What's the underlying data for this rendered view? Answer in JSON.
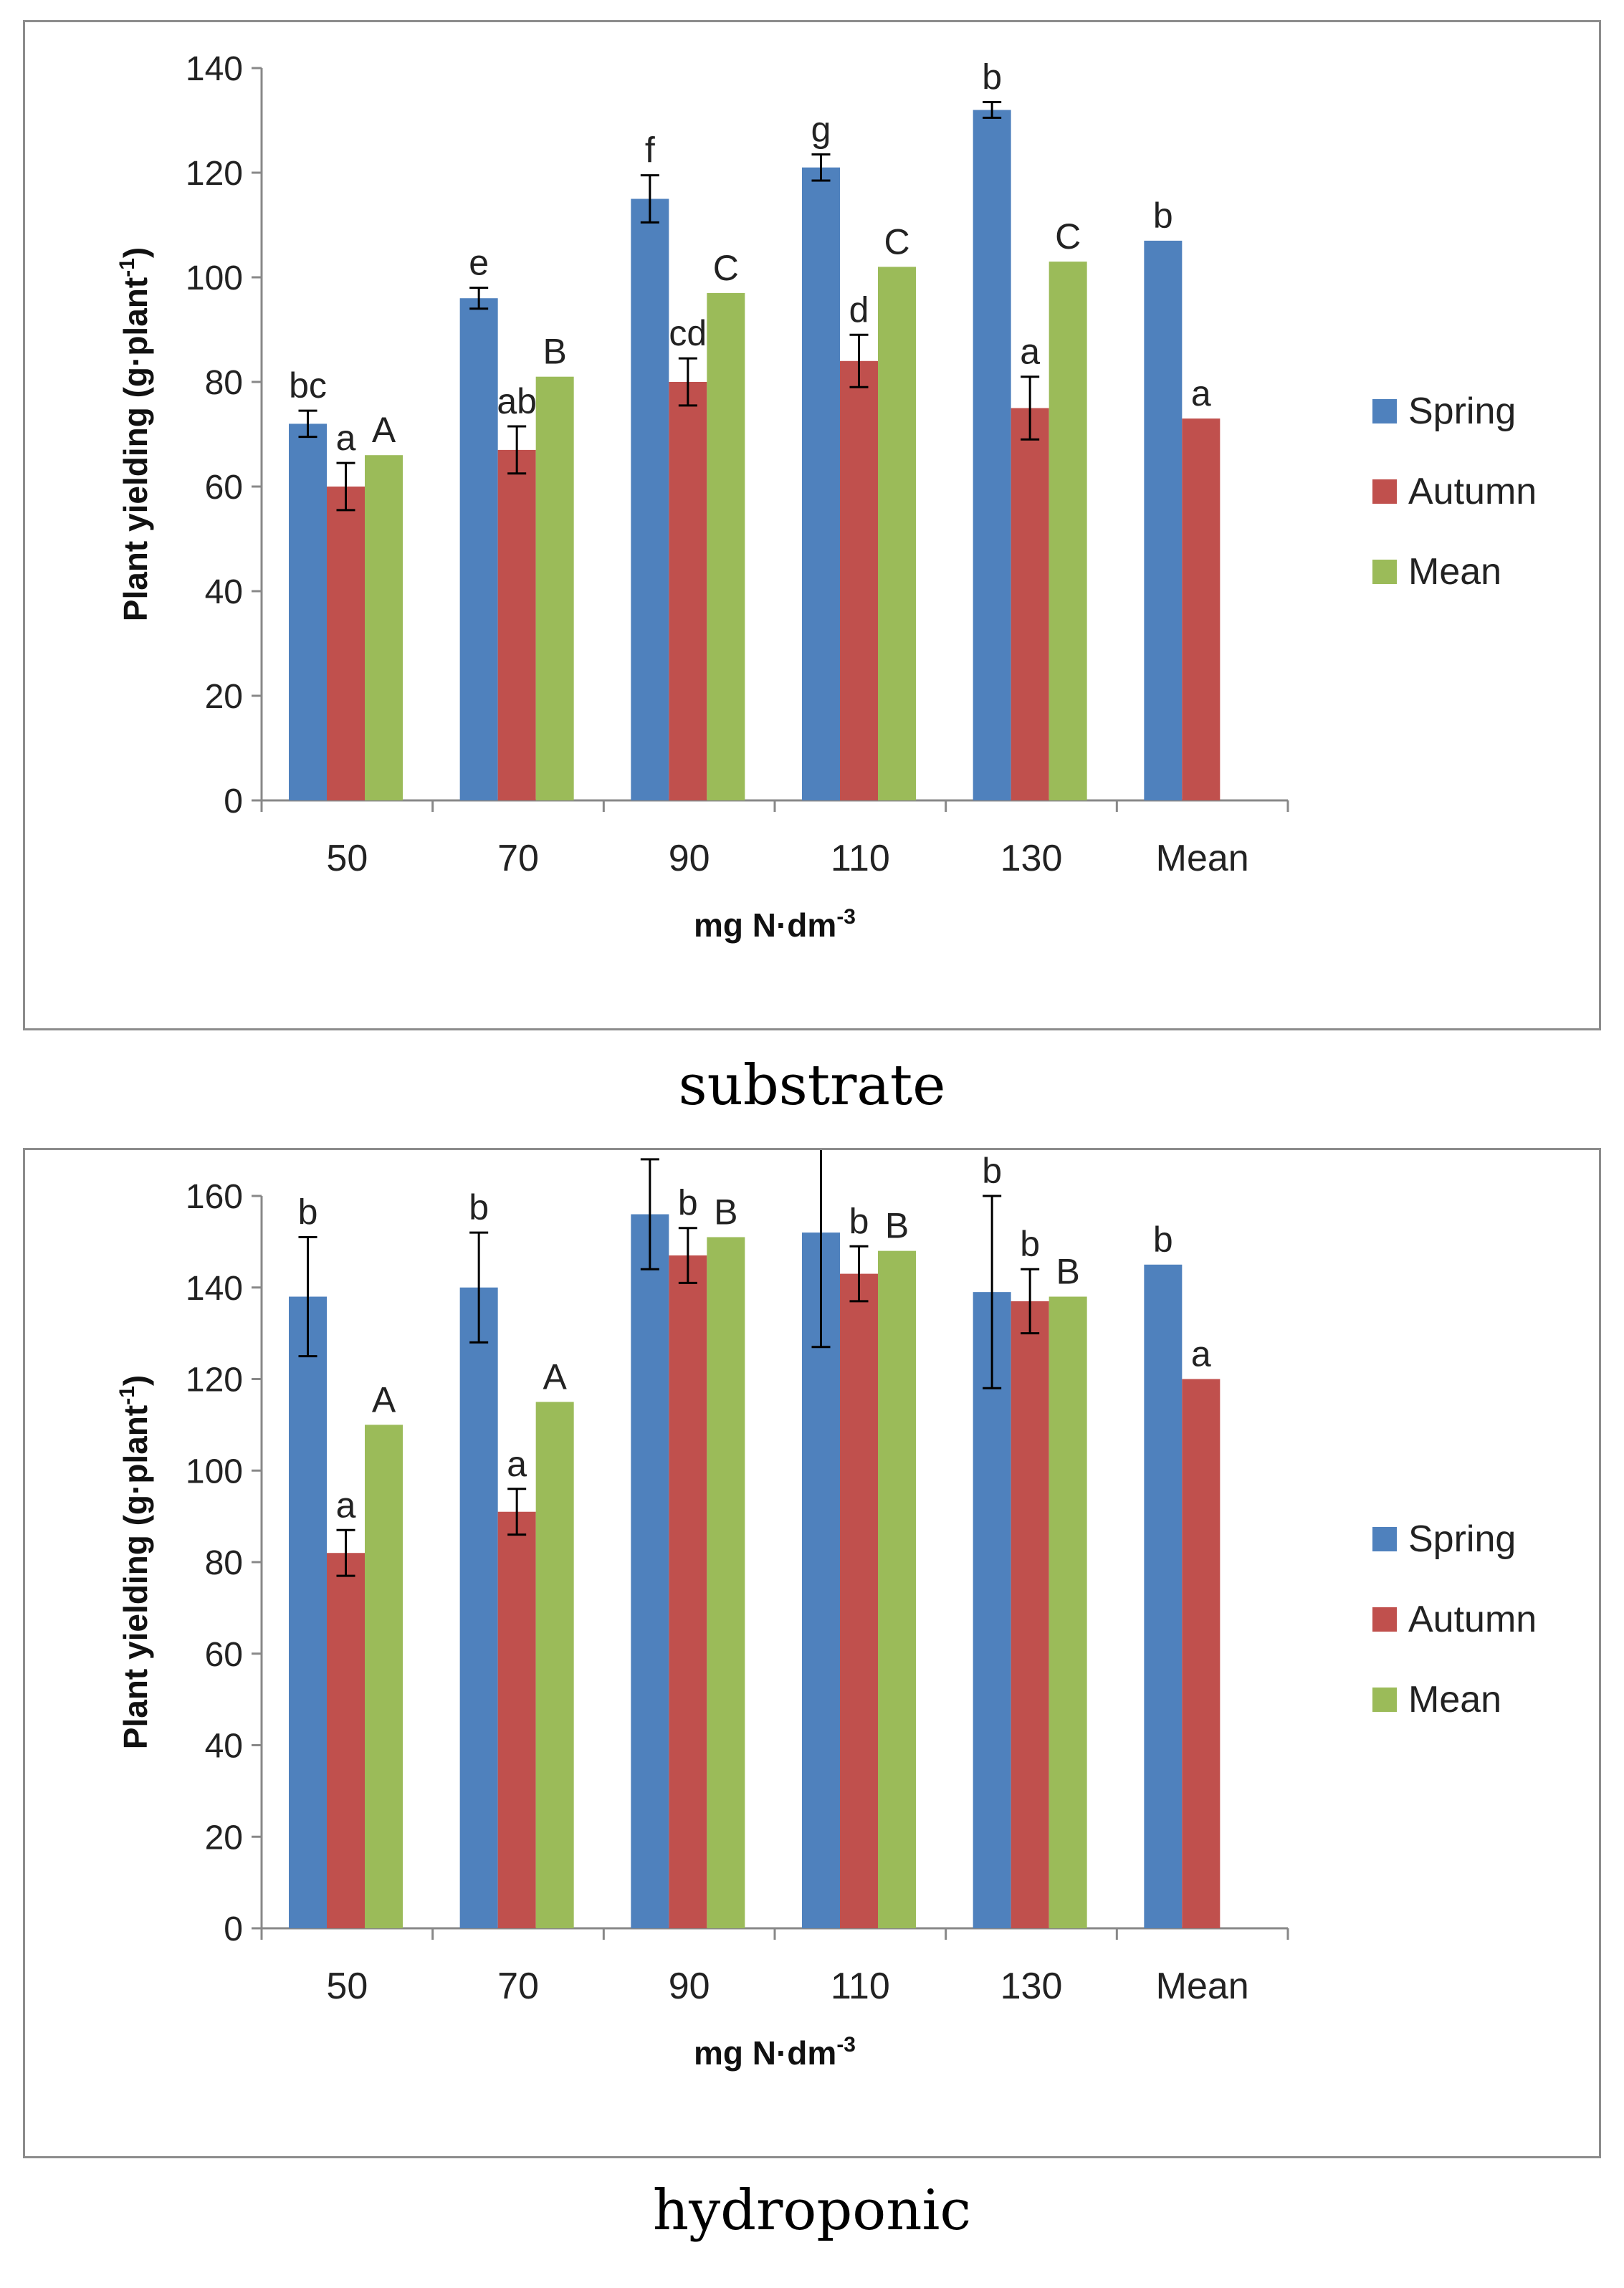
{
  "chart_data": [
    {
      "type": "bar",
      "caption": "substrate",
      "categories": [
        "50",
        "70",
        "90",
        "110",
        "130",
        "Mean"
      ],
      "xlabel": "mg N·dm",
      "xlabel_sup": "-3",
      "ylabel": "Plant yielding (g·plant",
      "ylabel_sup": "-1",
      "ylabel_end": ")",
      "ylim": [
        0,
        140
      ],
      "yticks": [
        0,
        20,
        40,
        60,
        80,
        100,
        120,
        140
      ],
      "legend_position": "right",
      "series": [
        {
          "name": "Spring",
          "color": "#4f81bd",
          "values": [
            72,
            96,
            115,
            121,
            132,
            107
          ],
          "errors": [
            2.5,
            2,
            4.5,
            2.5,
            1.5,
            null
          ],
          "labels": [
            "bc",
            "e",
            "f",
            "g",
            "b",
            "b"
          ]
        },
        {
          "name": "Autumn",
          "color": "#c0504d",
          "values": [
            60,
            67,
            80,
            84,
            75,
            73
          ],
          "errors": [
            4.5,
            4.5,
            4.5,
            5,
            6,
            null
          ],
          "labels": [
            "a",
            "ab",
            "cd",
            "d",
            "a",
            "a"
          ]
        },
        {
          "name": "Mean",
          "color": "#9bbb59",
          "values": [
            66,
            81,
            97,
            102,
            103,
            null
          ],
          "errors": [
            null,
            null,
            null,
            null,
            null,
            null
          ],
          "labels": [
            "A",
            "B",
            "C",
            "C",
            "C",
            ""
          ]
        }
      ]
    },
    {
      "type": "bar",
      "caption": "hydroponic",
      "categories": [
        "50",
        "70",
        "90",
        "110",
        "130",
        "Mean"
      ],
      "xlabel": "mg N·dm",
      "xlabel_sup": "-3",
      "ylabel": "Plant yielding (g·plant",
      "ylabel_sup": "-1",
      "ylabel_end": ")",
      "ylim": [
        0,
        160
      ],
      "yticks": [
        0,
        20,
        40,
        60,
        80,
        100,
        120,
        140,
        160
      ],
      "legend_position": "right",
      "series": [
        {
          "name": "Spring",
          "color": "#4f81bd",
          "values": [
            138,
            140,
            156,
            152,
            139,
            145
          ],
          "errors": [
            13,
            12,
            12,
            25,
            21,
            null
          ],
          "labels": [
            "b",
            "b",
            "b",
            "b",
            "b",
            "b"
          ]
        },
        {
          "name": "Autumn",
          "color": "#c0504d",
          "values": [
            82,
            91,
            147,
            143,
            137,
            120
          ],
          "errors": [
            5,
            5,
            6,
            6,
            7,
            null
          ],
          "labels": [
            "a",
            "a",
            "b",
            "b",
            "b",
            "a"
          ]
        },
        {
          "name": "Mean",
          "color": "#9bbb59",
          "values": [
            110,
            115,
            151,
            148,
            138,
            null
          ],
          "errors": [
            null,
            null,
            null,
            null,
            null,
            null
          ],
          "labels": [
            "A",
            "A",
            "B",
            "B",
            "B",
            ""
          ]
        }
      ]
    }
  ]
}
